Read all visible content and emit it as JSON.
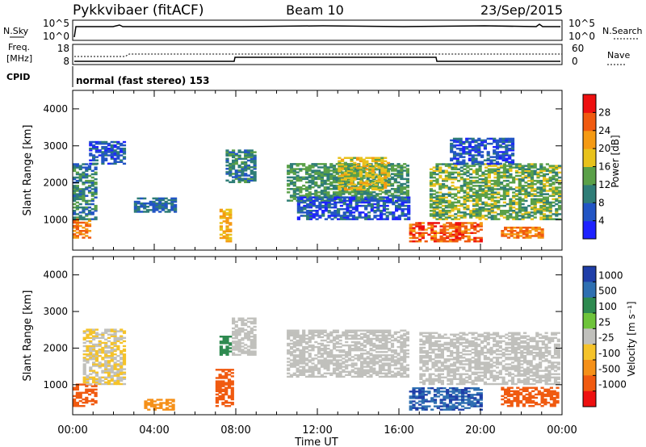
{
  "header": {
    "station": "Pykkvibaer (fitACF)",
    "beam": "Beam 10",
    "date": "23/Sep/2015"
  },
  "status_panels": {
    "nsky_label": "N.Sky",
    "noise_ticks": [
      "10^5",
      "10^0"
    ],
    "nsearch_label": "N.Search",
    "freq_label_line1": "Freq.",
    "freq_label_line2": "[MHz]",
    "freq_ticks": [
      "18",
      "8"
    ],
    "nave_ticks": [
      "60",
      "0"
    ],
    "nave_label": "Nave",
    "cpid_label": "CPID",
    "cpid_text": "normal (fast stereo) 153"
  },
  "colorbars": {
    "power": {
      "title": "Power [dB]",
      "ticks": [
        "4",
        "8",
        "12",
        "16",
        "20",
        "24",
        "28"
      ],
      "colors": [
        "#1e22ff",
        "#2255c4",
        "#2f7d77",
        "#5aa048",
        "#e8c21c",
        "#f59a13",
        "#f05a10",
        "#ee1010"
      ]
    },
    "velocity": {
      "title": "Velocity [m s⁻¹]",
      "ticks": [
        "1000",
        "500",
        "100",
        "25",
        "-25",
        "-100",
        "-500",
        "-1000"
      ],
      "colors": [
        "#1f3ea8",
        "#2e6fb1",
        "#2e8a50",
        "#6ec43a",
        "#c0c0bc",
        "#f5c32a",
        "#f59018",
        "#f05a10",
        "#ee1010"
      ]
    }
  },
  "chart_data": [
    {
      "type": "heatmap",
      "title": "Power",
      "xlabel": "",
      "ylabel": "Slant Range [km]",
      "x_ticks": [
        "00:00",
        "04:00",
        "08:00",
        "12:00",
        "16:00",
        "20:00",
        "00:00"
      ],
      "y_ticks": [
        "1000",
        "2000",
        "3000",
        "4000"
      ],
      "xlim": [
        0,
        24
      ],
      "ylim": [
        180,
        4500
      ],
      "regions": [
        {
          "x": [
            0.0,
            0.8
          ],
          "y": [
            500,
            1000
          ],
          "value": 24
        },
        {
          "x": [
            0.0,
            1.2
          ],
          "y": [
            1000,
            2500
          ],
          "value": 10
        },
        {
          "x": [
            0.8,
            2.5
          ],
          "y": [
            2500,
            3100
          ],
          "value": 6
        },
        {
          "x": [
            3.0,
            5.0
          ],
          "y": [
            1200,
            1600
          ],
          "value": 8
        },
        {
          "x": [
            7.2,
            7.8
          ],
          "y": [
            400,
            1300
          ],
          "value": 20
        },
        {
          "x": [
            7.5,
            9.0
          ],
          "y": [
            2000,
            2900
          ],
          "value": 10
        },
        {
          "x": [
            10.5,
            16.5
          ],
          "y": [
            1500,
            2500
          ],
          "value": 12
        },
        {
          "x": [
            13.0,
            15.5
          ],
          "y": [
            1800,
            2700
          ],
          "value": 18
        },
        {
          "x": [
            11.0,
            16.5
          ],
          "y": [
            1000,
            1600
          ],
          "value": 6
        },
        {
          "x": [
            16.5,
            20.0
          ],
          "y": [
            400,
            900
          ],
          "value": 26
        },
        {
          "x": [
            17.5,
            23.8
          ],
          "y": [
            1000,
            2500
          ],
          "value": 14
        },
        {
          "x": [
            21.0,
            23.0
          ],
          "y": [
            500,
            800
          ],
          "value": 24
        },
        {
          "x": [
            18.5,
            21.5
          ],
          "y": [
            2500,
            3200
          ],
          "value": 6
        }
      ]
    },
    {
      "type": "heatmap",
      "title": "Velocity",
      "xlabel": "Time UT",
      "ylabel": "Slant Range [km]",
      "x_ticks": [
        "00:00",
        "04:00",
        "08:00",
        "12:00",
        "16:00",
        "20:00",
        "00:00"
      ],
      "y_ticks": [
        "1000",
        "2000",
        "3000",
        "4000"
      ],
      "xlim": [
        0,
        24
      ],
      "ylim": [
        180,
        4500
      ],
      "regions": [
        {
          "x": [
            0.0,
            1.2
          ],
          "y": [
            400,
            1000
          ],
          "value": -500
        },
        {
          "x": [
            0.5,
            2.5
          ],
          "y": [
            1000,
            2500
          ],
          "value": -25
        },
        {
          "x": [
            3.5,
            5.0
          ],
          "y": [
            300,
            600
          ],
          "value": -100
        },
        {
          "x": [
            7.0,
            7.8
          ],
          "y": [
            400,
            1400
          ],
          "value": -500
        },
        {
          "x": [
            7.2,
            7.8
          ],
          "y": [
            1800,
            2300
          ],
          "value": 100
        },
        {
          "x": [
            7.8,
            9.0
          ],
          "y": [
            1800,
            2800
          ],
          "value": 0
        },
        {
          "x": [
            10.5,
            16.5
          ],
          "y": [
            1200,
            2500
          ],
          "value": 0
        },
        {
          "x": [
            16.5,
            20.0
          ],
          "y": [
            300,
            900
          ],
          "value": 700
        },
        {
          "x": [
            17.0,
            23.8
          ],
          "y": [
            1000,
            2400
          ],
          "value": 0
        },
        {
          "x": [
            21.0,
            23.8
          ],
          "y": [
            400,
            900
          ],
          "value": -500
        }
      ]
    }
  ]
}
